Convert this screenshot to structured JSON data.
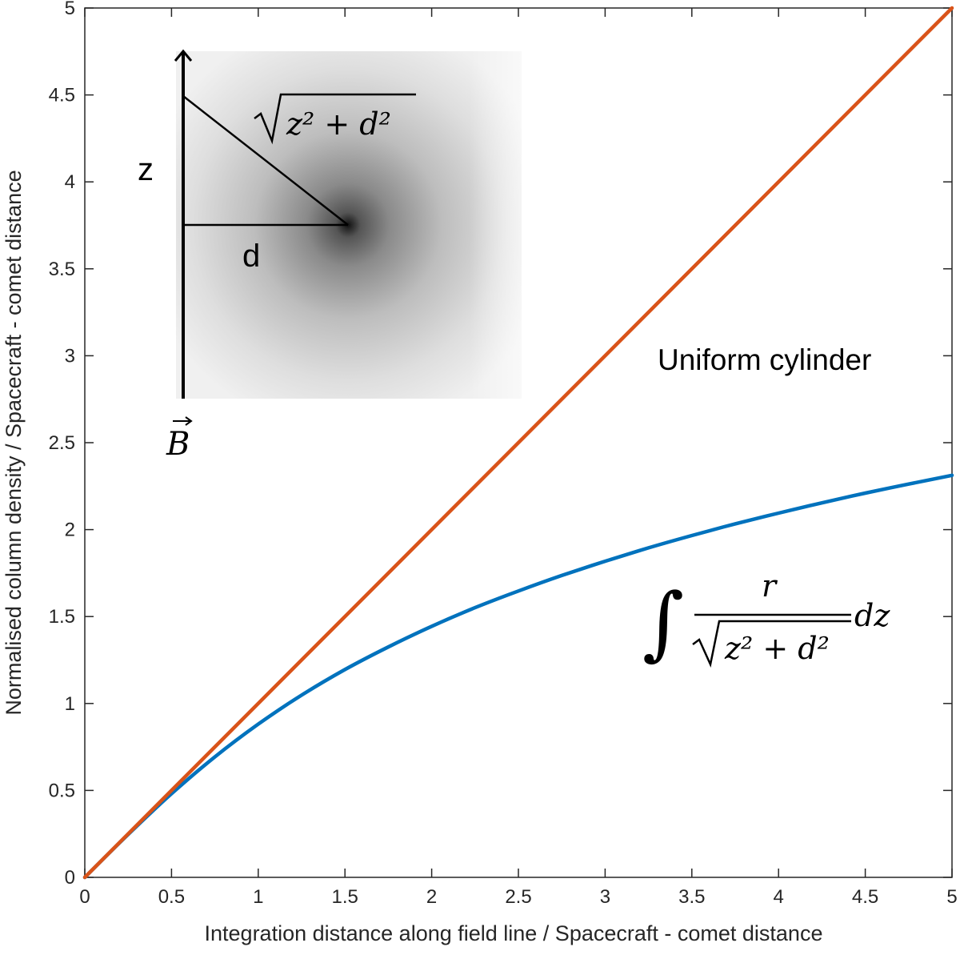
{
  "chart_data": {
    "type": "line",
    "title": "",
    "xlabel": "Integration distance along field line / Spacecraft - comet distance",
    "ylabel": "Normalised column density / Spacecraft - comet distance",
    "xlim": [
      0,
      5
    ],
    "ylim": [
      0,
      5
    ],
    "xticks": [
      "0",
      "0.5",
      "1",
      "1.5",
      "2",
      "2.5",
      "3",
      "3.5",
      "4",
      "4.5",
      "5"
    ],
    "yticks": [
      "0",
      "0.5",
      "1",
      "1.5",
      "2",
      "2.5",
      "3",
      "3.5",
      "4",
      "4.5",
      "5"
    ],
    "grid": false,
    "legend": "none",
    "series": [
      {
        "color": "#D95319",
        "x": [
          0,
          5
        ],
        "y": [
          0,
          5
        ]
      },
      {
        "color": "#0072BD",
        "x": [
          0,
          0.25,
          0.5,
          0.75,
          1,
          1.25,
          1.5,
          1.75,
          2,
          2.25,
          2.5,
          2.75,
          3,
          3.25,
          3.5,
          3.75,
          4,
          4.25,
          4.5,
          4.75,
          5
        ],
        "y": [
          0,
          0.247,
          0.481,
          0.693,
          0.881,
          1.048,
          1.195,
          1.325,
          1.444,
          1.551,
          1.647,
          1.736,
          1.818,
          1.895,
          1.966,
          2.033,
          2.095,
          2.154,
          2.21,
          2.262,
          2.312
        ]
      }
    ],
    "annotations": {
      "uniform_label": "Uniform cylinder",
      "z_label": "z",
      "d_label": "d",
      "b_label": "B",
      "sqrt_label": "z² + d²",
      "integral_numerator": "r",
      "integral_denominator": "z² + d²",
      "integral_tail": "dz"
    }
  }
}
